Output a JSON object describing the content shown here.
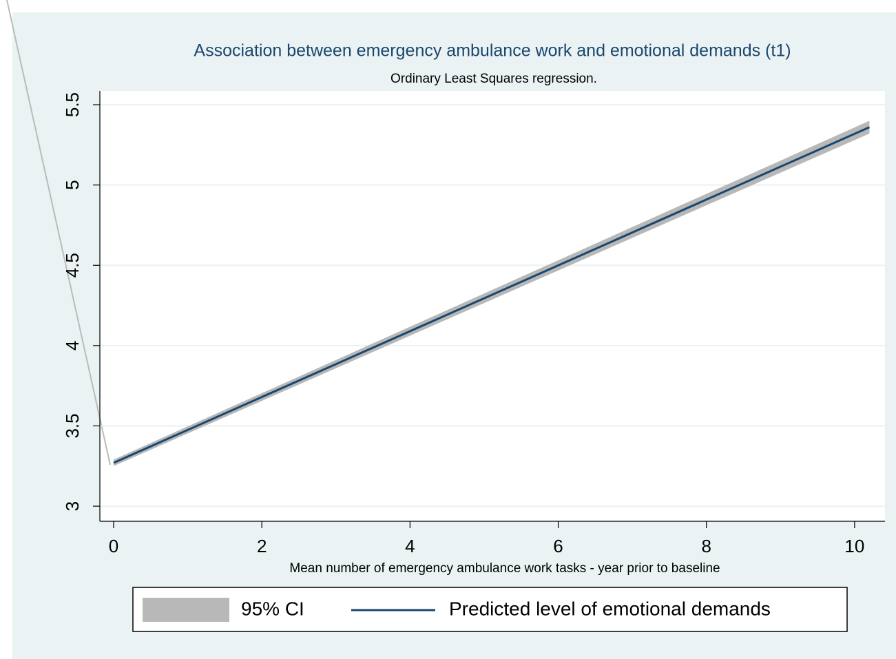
{
  "chart_data": {
    "type": "line",
    "title": "Association between emergency ambulance work and emotional demands (t1)",
    "subtitle": "Ordinary Least Squares regression.",
    "x_label": "Mean number of emergency ambulance work tasks - year prior to baseline",
    "x": [
      0,
      10.2
    ],
    "series": [
      {
        "name": "95% CI",
        "color": "#b8b8b8",
        "lower": [
          3.25,
          5.32
        ],
        "upper": [
          3.29,
          5.4
        ]
      },
      {
        "name": "Predicted level of emotional demands",
        "color": "#1a476f",
        "values": [
          3.27,
          5.36
        ]
      }
    ],
    "xlim": [
      -0.186,
      10.41
    ],
    "xticks": [
      0,
      2,
      4,
      6,
      8,
      10
    ],
    "ylim": [
      2.906,
      5.586
    ],
    "yticks": [
      3,
      3.5,
      4,
      4.5,
      5,
      5.5
    ],
    "grid": true
  }
}
